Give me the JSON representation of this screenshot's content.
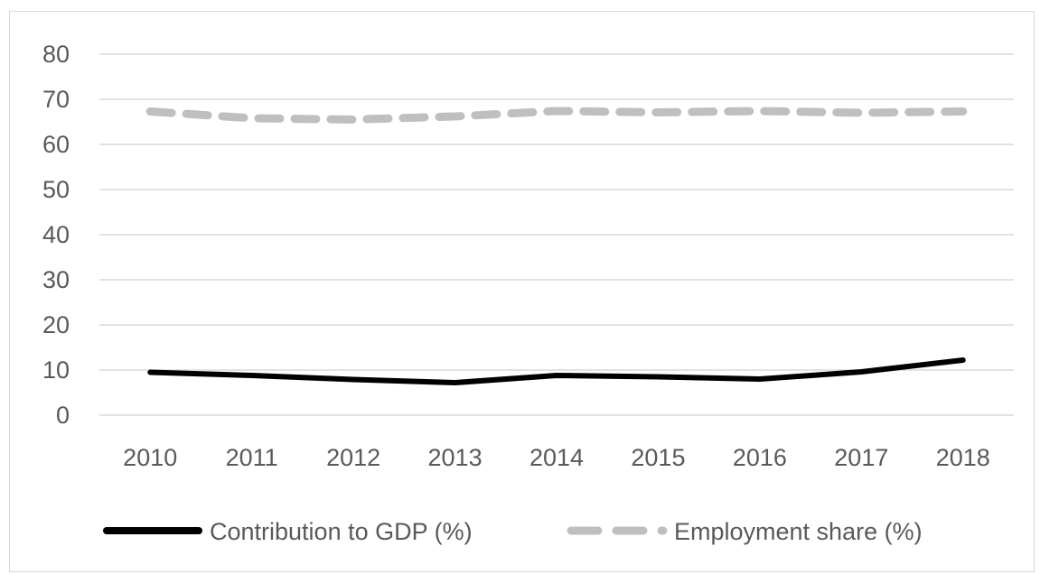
{
  "chart_data": {
    "type": "line",
    "title": "",
    "xlabel": "",
    "ylabel": "",
    "categories": [
      "2010",
      "2011",
      "2012",
      "2013",
      "2014",
      "2015",
      "2016",
      "2017",
      "2018"
    ],
    "ylim": [
      0,
      80
    ],
    "yticks": [
      "0",
      "10",
      "20",
      "30",
      "40",
      "50",
      "60",
      "70",
      "80"
    ],
    "grid": true,
    "legend_position": "bottom",
    "series": [
      {
        "name": "Contribution to GDP (%)",
        "values": [
          9.5,
          8.8,
          7.9,
          7.2,
          8.8,
          8.5,
          8.0,
          9.6,
          12.2
        ],
        "color": "#000000",
        "style": "solid"
      },
      {
        "name": "Employment share (%)",
        "values": [
          67.3,
          65.8,
          65.5,
          66.2,
          67.4,
          67.1,
          67.4,
          67.0,
          67.3
        ],
        "color": "#bfbfbf",
        "style": "dashed"
      }
    ]
  }
}
